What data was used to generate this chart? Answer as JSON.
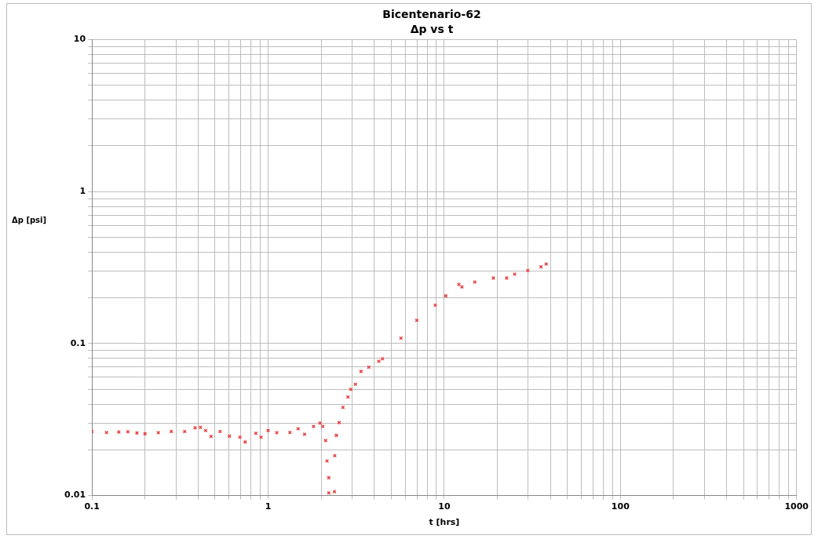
{
  "chart_data": {
    "type": "scatter",
    "title": "Bicentenario-62",
    "subtitle": "Δp vs t",
    "xlabel": "t [hrs]",
    "ylabel": "Δp [psi]",
    "log": "xy",
    "grid": true,
    "legend": false,
    "marker": "cross",
    "xlim": [
      0.1,
      1000
    ],
    "ylim": [
      0.01,
      10
    ],
    "xticks": [
      0.1,
      {
        "value": 0.2,
        "label": null
      },
      {
        "value": 0.3,
        "label": null
      },
      {
        "value": 0.4,
        "label": null
      },
      {
        "value": 0.5,
        "label": null
      },
      {
        "value": 0.6,
        "label": null
      },
      {
        "value": 0.7,
        "label": null
      },
      {
        "value": 0.8,
        "label": null
      },
      {
        "value": 0.9,
        "label": null
      },
      1,
      {
        "value": 2,
        "label": null
      },
      {
        "value": 3,
        "label": null
      },
      {
        "value": 4,
        "label": null
      },
      {
        "value": 5,
        "label": null
      },
      {
        "value": 6,
        "label": null
      },
      {
        "value": 7,
        "label": null
      },
      {
        "value": 8,
        "label": null
      },
      {
        "value": 9,
        "label": null
      },
      10,
      {
        "value": 20,
        "label": null
      },
      {
        "value": 30,
        "label": null
      },
      {
        "value": 40,
        "label": null
      },
      {
        "value": 50,
        "label": null
      },
      {
        "value": 60,
        "label": null
      },
      {
        "value": 70,
        "label": null
      },
      {
        "value": 80,
        "label": null
      },
      {
        "value": 90,
        "label": null
      },
      100,
      {
        "value": 200,
        "label": null
      },
      {
        "value": 300,
        "label": null
      },
      {
        "value": 400,
        "label": null
      },
      {
        "value": 500,
        "label": null
      },
      {
        "value": 600,
        "label": null
      },
      {
        "value": 700,
        "label": null
      },
      {
        "value": 800,
        "label": null
      },
      {
        "value": 900,
        "label": null
      },
      1000
    ],
    "yticks": [
      0.01,
      {
        "value": 0.02,
        "label": null
      },
      {
        "value": 0.03,
        "label": null
      },
      {
        "value": 0.04,
        "label": null
      },
      {
        "value": 0.05,
        "label": null
      },
      {
        "value": 0.06,
        "label": null
      },
      {
        "value": 0.07,
        "label": null
      },
      {
        "value": 0.08,
        "label": null
      },
      {
        "value": 0.09,
        "label": null
      },
      0.1,
      {
        "value": 0.2,
        "label": null
      },
      {
        "value": 0.3,
        "label": null
      },
      {
        "value": 0.4,
        "label": null
      },
      {
        "value": 0.5,
        "label": null
      },
      {
        "value": 0.6,
        "label": null
      },
      {
        "value": 0.7,
        "label": null
      },
      {
        "value": 0.8,
        "label": null
      },
      {
        "value": 0.9,
        "label": null
      },
      1,
      {
        "value": 2,
        "label": null
      },
      {
        "value": 3,
        "label": null
      },
      {
        "value": 4,
        "label": null
      },
      {
        "value": 5,
        "label": null
      },
      {
        "value": 6,
        "label": null
      },
      {
        "value": 7,
        "label": null
      },
      {
        "value": 8,
        "label": null
      },
      {
        "value": 9,
        "label": null
      },
      10
    ],
    "series": [
      {
        "color": "#e8403f",
        "x": [
          0.1,
          0.121,
          0.142,
          0.16,
          0.18,
          0.2,
          0.238,
          0.282,
          0.336,
          0.385,
          0.413,
          0.442,
          0.474,
          0.534,
          0.603,
          0.692,
          0.741,
          0.852,
          0.912,
          1.0,
          1.12,
          1.33,
          1.48,
          1.61,
          1.81,
          1.97,
          2.04,
          2.12,
          2.16,
          2.21,
          2.21,
          2.38,
          2.39,
          2.44,
          2.53,
          2.66,
          2.84,
          2.95,
          3.13,
          3.37,
          3.73,
          4.25,
          4.46,
          5.68,
          6.98,
          8.89,
          10.2,
          12.1,
          12.6,
          14.9,
          19.0,
          22.6,
          25.1,
          29.8,
          35.4,
          37.9
        ],
        "values": [
          0.0264,
          0.026,
          0.0262,
          0.0263,
          0.0258,
          0.0255,
          0.0259,
          0.0264,
          0.0264,
          0.0279,
          0.0281,
          0.0268,
          0.0245,
          0.0264,
          0.0246,
          0.0242,
          0.0225,
          0.0257,
          0.0242,
          0.0268,
          0.0259,
          0.026,
          0.0275,
          0.0253,
          0.0285,
          0.03,
          0.0285,
          0.023,
          0.0169,
          0.0131,
          0.0104,
          0.0106,
          0.0183,
          0.0249,
          0.0302,
          0.038,
          0.0445,
          0.05,
          0.054,
          0.0656,
          0.07,
          0.0765,
          0.0795,
          0.1085,
          0.1423,
          0.179,
          0.206,
          0.245,
          0.236,
          0.254,
          0.27,
          0.27,
          0.286,
          0.303,
          0.32,
          0.334
        ]
      }
    ]
  }
}
